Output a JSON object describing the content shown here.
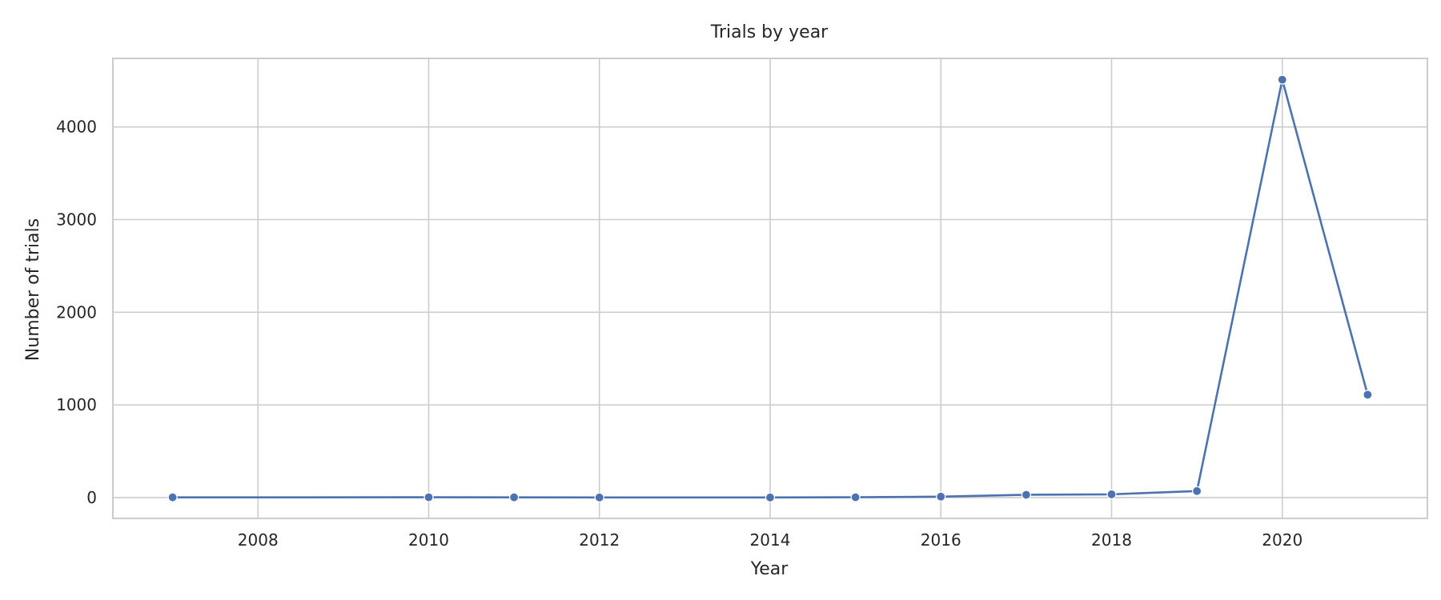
{
  "chart_data": {
    "type": "line",
    "title": "Trials by year",
    "xlabel": "Year",
    "ylabel": "Number of trials",
    "x": [
      2007,
      2010,
      2011,
      2012,
      2014,
      2015,
      2016,
      2017,
      2018,
      2019,
      2020,
      2021
    ],
    "series": [
      {
        "values": [
          2,
          3,
          2,
          1,
          1,
          3,
          10,
          30,
          35,
          70,
          4510,
          1110
        ],
        "color": "#4c72b0",
        "marker": "circle"
      }
    ],
    "xlim": [
      2006.3,
      2021.7
    ],
    "ylim": [
      -225,
      4740
    ],
    "x_ticks": [
      "2008",
      "2010",
      "2012",
      "2014",
      "2016",
      "2018",
      "2020"
    ],
    "y_ticks": [
      "0",
      "1000",
      "2000",
      "3000",
      "4000"
    ],
    "grid": true,
    "legend": "none"
  }
}
